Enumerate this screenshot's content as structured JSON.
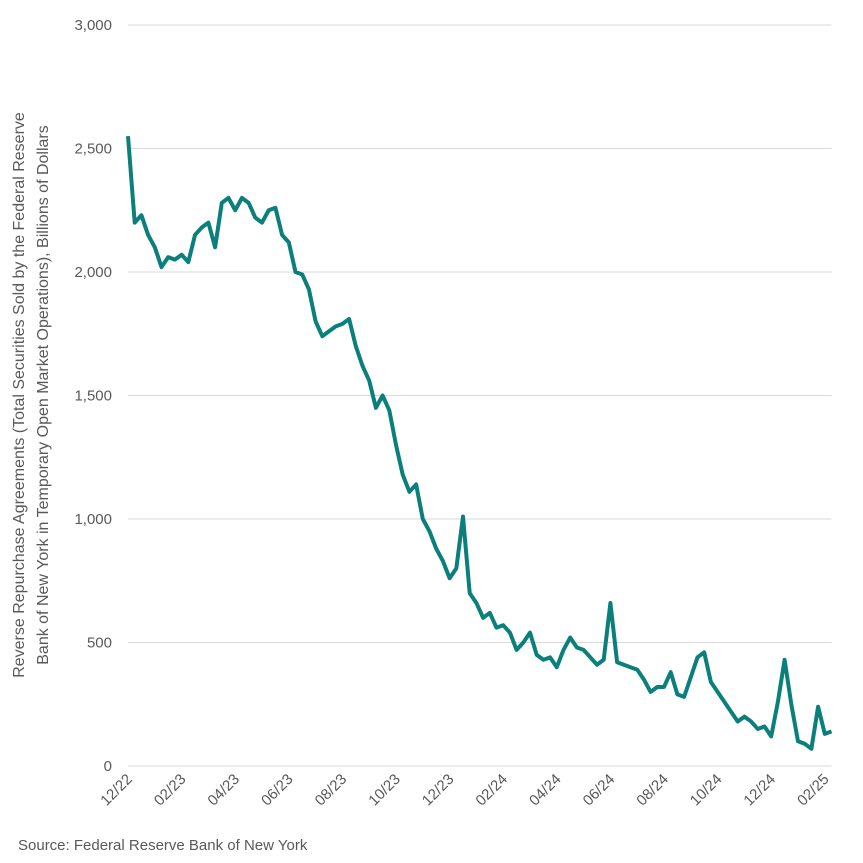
{
  "chart_data": {
    "type": "line",
    "ylabel": [
      "Reverse Repurchase Agreements (Total Securities Sold by the Federal Reserve",
      "Bank of New York in Temporary Open Market Operations), Billions of Dollars"
    ],
    "source": "Source: Federal Reserve Bank of New York",
    "categories": [
      "12/22",
      null,
      null,
      null,
      null,
      null,
      null,
      null,
      "02/23",
      null,
      null,
      null,
      null,
      null,
      null,
      null,
      "04/23",
      null,
      null,
      null,
      null,
      null,
      null,
      null,
      "06/23",
      null,
      null,
      null,
      null,
      null,
      null,
      null,
      "08/23",
      null,
      null,
      null,
      null,
      null,
      null,
      null,
      "10/23",
      null,
      null,
      null,
      null,
      null,
      null,
      null,
      "12/23",
      null,
      null,
      null,
      null,
      null,
      null,
      null,
      "02/24",
      null,
      null,
      null,
      null,
      null,
      null,
      null,
      "04/24",
      null,
      null,
      null,
      null,
      null,
      null,
      null,
      "06/24",
      null,
      null,
      null,
      null,
      null,
      null,
      null,
      "08/24",
      null,
      null,
      null,
      null,
      null,
      null,
      null,
      "10/24",
      null,
      null,
      null,
      null,
      null,
      null,
      null,
      "12/24",
      null,
      null,
      null,
      null,
      null,
      null,
      null,
      "02/25",
      null
    ],
    "series": [
      {
        "name": "Reverse Repurchase Agreements",
        "color": "#0b7f7c",
        "values": [
          2550,
          2200,
          2230,
          2150,
          2100,
          2020,
          2060,
          2050,
          2070,
          2040,
          2150,
          2180,
          2200,
          2100,
          2280,
          2300,
          2250,
          2300,
          2280,
          2220,
          2200,
          2250,
          2260,
          2150,
          2120,
          2000,
          1990,
          1930,
          1800,
          1740,
          1760,
          1780,
          1790,
          1810,
          1700,
          1620,
          1560,
          1450,
          1500,
          1440,
          1300,
          1180,
          1110,
          1140,
          1000,
          950,
          880,
          830,
          760,
          800,
          1010,
          700,
          660,
          600,
          620,
          560,
          570,
          540,
          470,
          500,
          540,
          450,
          430,
          440,
          400,
          470,
          520,
          480,
          470,
          440,
          410,
          430,
          660,
          420,
          410,
          400,
          390,
          350,
          300,
          320,
          320,
          380,
          290,
          280,
          360,
          440,
          460,
          340,
          300,
          260,
          220,
          180,
          200,
          180,
          150,
          160,
          120,
          260,
          430,
          250,
          100,
          90,
          70,
          240,
          130,
          140
        ]
      }
    ],
    "ylim": [
      0,
      3000
    ],
    "yticks": [
      0,
      500,
      {
        "value": 1000,
        "label": "1,000"
      },
      {
        "value": 1500,
        "label": "1,500"
      },
      {
        "value": 2000,
        "label": "2,000"
      },
      {
        "value": 2500,
        "label": "2,500"
      },
      {
        "value": 3000,
        "label": "3,000"
      }
    ],
    "grid": true
  }
}
